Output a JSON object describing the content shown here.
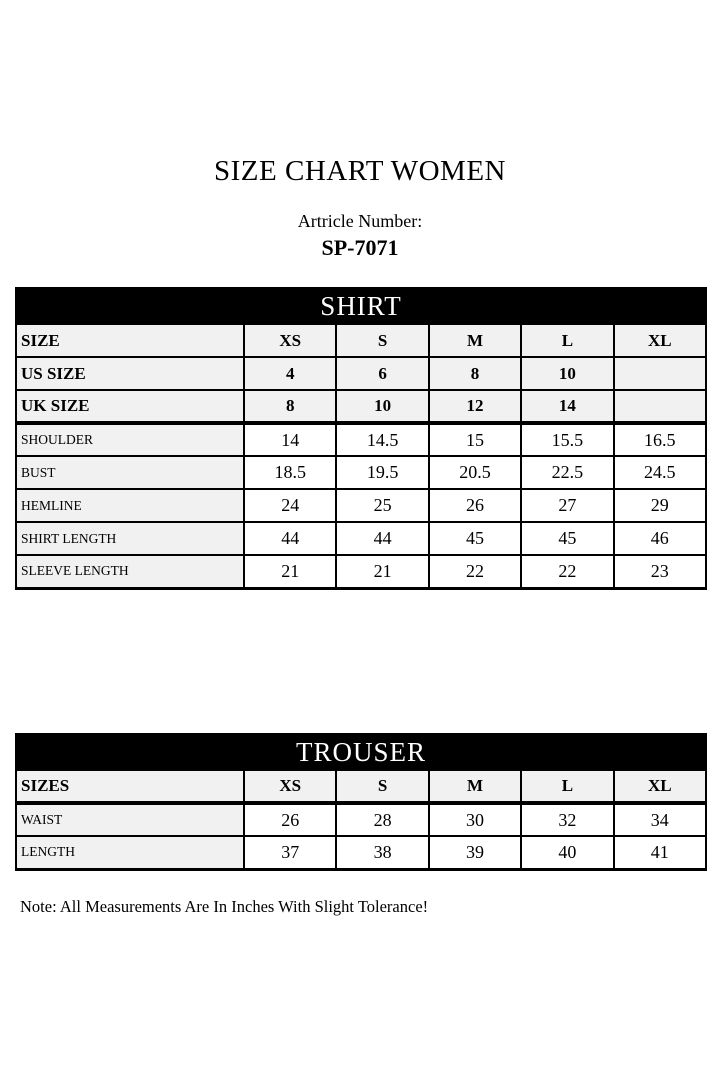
{
  "page": {
    "title": "SIZE CHART WOMEN",
    "article_label": "Artricle Number:",
    "article_number": "SP-7071",
    "note": "Note: All Measurements Are In Inches With Slight Tolerance!"
  },
  "colors": {
    "band_background": "#000000",
    "band_text": "#ffffff",
    "header_cell_background": "#f1f1f1",
    "value_cell_background": "#ffffff",
    "border": "#000000"
  },
  "shirt_table": {
    "title": "SHIRT",
    "columns": [
      "SIZE",
      "XS",
      "S",
      "M",
      "L",
      "XL"
    ],
    "size_rows": [
      {
        "label": "US SIZE",
        "values": [
          "4",
          "6",
          "8",
          "10",
          ""
        ]
      },
      {
        "label": "UK SIZE",
        "values": [
          "8",
          "10",
          "12",
          "14",
          ""
        ]
      }
    ],
    "measurement_rows": [
      {
        "label": "SHOULDER",
        "values": [
          "14",
          "14.5",
          "15",
          "15.5",
          "16.5"
        ]
      },
      {
        "label": "BUST",
        "values": [
          "18.5",
          "19.5",
          "20.5",
          "22.5",
          "24.5"
        ]
      },
      {
        "label": "HEMLINE",
        "values": [
          "24",
          "25",
          "26",
          "27",
          "29"
        ]
      },
      {
        "label": "SHIRT LENGTH",
        "values": [
          "44",
          "44",
          "45",
          "45",
          "46"
        ]
      },
      {
        "label": "SLEEVE LENGTH",
        "values": [
          "21",
          "21",
          "22",
          "22",
          "23"
        ]
      }
    ]
  },
  "trouser_table": {
    "title": "TROUSER",
    "columns": [
      "SIZES",
      "XS",
      "S",
      "M",
      "L",
      "XL"
    ],
    "measurement_rows": [
      {
        "label": "WAIST",
        "values": [
          "26",
          "28",
          "30",
          "32",
          "34"
        ]
      },
      {
        "label": "LENGTH",
        "values": [
          "37",
          "38",
          "39",
          "40",
          "41"
        ]
      }
    ]
  }
}
